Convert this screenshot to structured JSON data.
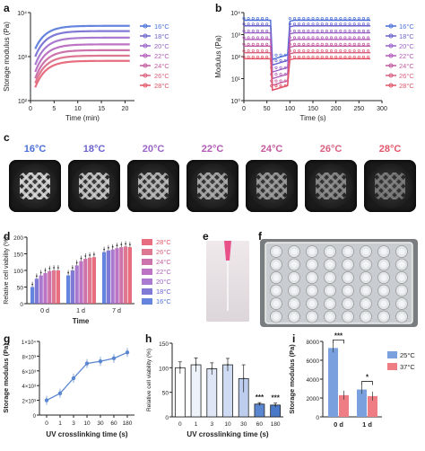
{
  "colors": {
    "c16": "#4a6fd8",
    "c18": "#6a63cf",
    "c20": "#9a63c8",
    "c22": "#b25ab8",
    "c24": "#c45a9e",
    "c26": "#d8607f",
    "c28": "#e35468",
    "blue25": "#7aa0de",
    "red37": "#ef7d84"
  },
  "panel_labels": {
    "a": "a",
    "b": "b",
    "c": "c",
    "d": "d",
    "e": "e",
    "f": "f",
    "g": "g",
    "h": "h",
    "i": "i"
  },
  "legend_temps": [
    "16°C",
    "18°C",
    "20°C",
    "22°C",
    "24°C",
    "26°C",
    "28°C"
  ],
  "legend_temps_desc": [
    "28°C",
    "26°C",
    "24°C",
    "22°C",
    "20°C",
    "18°C",
    "16°C"
  ],
  "dish_labels": [
    "16°C",
    "18°C",
    "20°C",
    "22°C",
    "24°C",
    "26°C",
    "28°C"
  ],
  "chart_data": [
    {
      "id": "a",
      "type": "line",
      "xlabel": "Time (min)",
      "ylabel": "Storage modulus (Pa)",
      "xlim": [
        0,
        22
      ],
      "ylim_log": [
        100,
        10000
      ],
      "xticks": [
        "0",
        "5",
        "10",
        "15",
        "20"
      ],
      "yticks": [
        "10²",
        "10³",
        "10⁴"
      ],
      "series": [
        {
          "name": "16°C",
          "start": 1500,
          "end": 5000
        },
        {
          "name": "18°C",
          "start": 1000,
          "end": 3800
        },
        {
          "name": "20°C",
          "start": 650,
          "end": 2700
        },
        {
          "name": "22°C",
          "start": 450,
          "end": 1900
        },
        {
          "name": "24°C",
          "start": 320,
          "end": 1400
        },
        {
          "name": "26°C",
          "start": 250,
          "end": 1050
        },
        {
          "name": "28°C",
          "start": 200,
          "end": 800
        }
      ]
    },
    {
      "id": "b",
      "type": "line",
      "xlabel": "Time (s)",
      "ylabel": "Modulus (Pa)",
      "xlim": [
        0,
        300
      ],
      "ylim_log": [
        1,
        10000
      ],
      "xticks": [
        "0",
        "50",
        "100",
        "150",
        "200",
        "250",
        "300"
      ],
      "yticks": [
        "10⁰",
        "10¹",
        "10²",
        "10³",
        "10⁴"
      ],
      "series": [
        {
          "name": "16°C",
          "level": 4500
        },
        {
          "name": "18°C",
          "level": 2500
        },
        {
          "name": "20°C",
          "level": 1200
        },
        {
          "name": "22°C",
          "level": 600
        },
        {
          "name": "24°C",
          "level": 300
        },
        {
          "name": "26°C",
          "level": 150
        },
        {
          "name": "28°C",
          "level": 80
        }
      ]
    },
    {
      "id": "d",
      "type": "bar",
      "xlabel": "Time",
      "ylabel": "Relative cell viability (%)",
      "ylim": [
        0,
        200
      ],
      "yticks": [
        "0",
        "50",
        "100",
        "150",
        "200"
      ],
      "categories": [
        "0 d",
        "1 d",
        "7 d"
      ],
      "series": [
        {
          "name": "16°C",
          "values": [
            50,
            85,
            155
          ]
        },
        {
          "name": "18°C",
          "values": [
            75,
            100,
            160
          ]
        },
        {
          "name": "20°C",
          "values": [
            85,
            115,
            163
          ]
        },
        {
          "name": "22°C",
          "values": [
            92,
            128,
            167
          ]
        },
        {
          "name": "24°C",
          "values": [
            98,
            135,
            170
          ]
        },
        {
          "name": "26°C",
          "values": [
            100,
            138,
            172
          ]
        },
        {
          "name": "28°C",
          "values": [
            100,
            140,
            170
          ]
        }
      ]
    },
    {
      "id": "g",
      "type": "line",
      "xlabel": "UV crosslinking time (s)",
      "ylabel": "Storage modulus (Pa)",
      "categories": [
        "0",
        "1",
        "3",
        "10",
        "30",
        "60",
        "180"
      ],
      "values": [
        2000,
        2950,
        5000,
        7000,
        7300,
        7700,
        8500
      ],
      "ylim": [
        0,
        10000
      ],
      "yticks": [
        "0",
        "2×10³",
        "4×10³",
        "6×10³",
        "8×10³",
        "1×10⁴"
      ]
    },
    {
      "id": "h",
      "type": "bar",
      "xlabel": "UV crosslinking time (s)",
      "ylabel": "Relative cell viability (%)",
      "categories": [
        "0",
        "1",
        "3",
        "10",
        "30",
        "60",
        "180"
      ],
      "values": [
        100,
        106,
        98,
        106,
        78,
        26,
        24
      ],
      "errors": [
        12,
        14,
        12,
        13,
        28,
        3,
        4
      ],
      "annotations": [
        "",
        "",
        "",
        "",
        "",
        "***",
        "***"
      ],
      "ylim": [
        0,
        150
      ],
      "yticks": [
        "0",
        "50",
        "100",
        "150"
      ]
    },
    {
      "id": "i",
      "type": "bar",
      "xlabel": "",
      "ylabel": "Storage modulus (Pa)",
      "categories": [
        "0 d",
        "1 d"
      ],
      "series": [
        {
          "name": "25°C",
          "values": [
            7300,
            2900
          ]
        },
        {
          "name": "37°C",
          "values": [
            2300,
            2200
          ]
        }
      ],
      "ylim": [
        0,
        8000
      ],
      "yticks": [
        "0",
        "2000",
        "4000",
        "6000",
        "8000"
      ],
      "significance": [
        "***",
        "*"
      ]
    }
  ]
}
